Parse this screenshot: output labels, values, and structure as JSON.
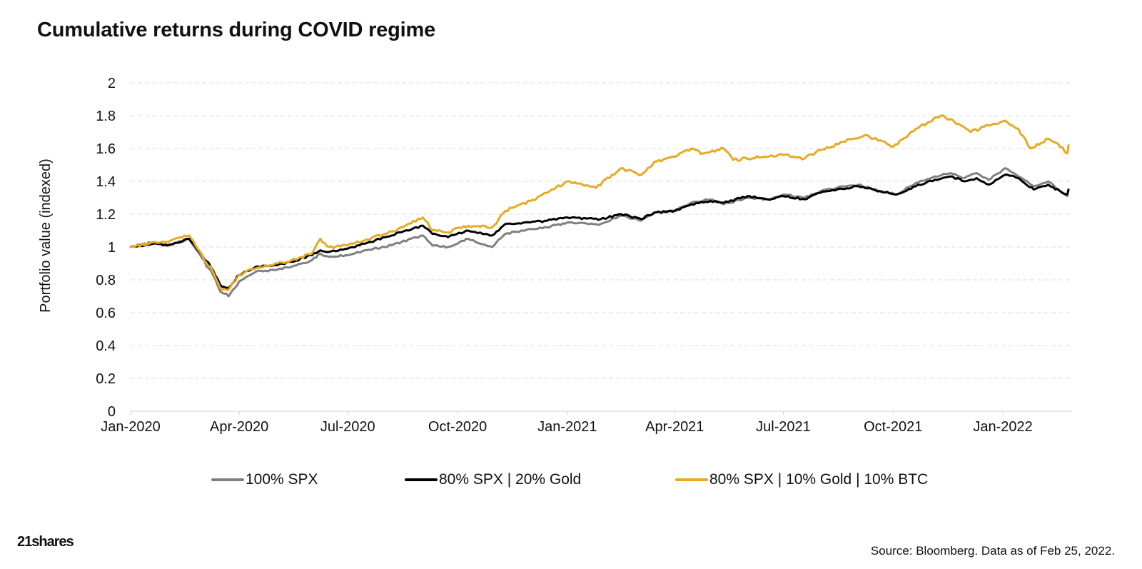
{
  "logo_text": "21shares",
  "source_note": "Source: Bloomberg. Data as of Feb 25, 2022.",
  "chart_data": {
    "type": "line",
    "title": "Cumulative returns during COVID regime",
    "xlabel": "",
    "ylabel": "Portfolio value (indexed)",
    "ylim": [
      0,
      2
    ],
    "yticks": [
      "0",
      "0.2",
      "0.4",
      "0.6",
      "0.8",
      "1",
      "1.2",
      "1.4",
      "1.6",
      "1.8",
      "2"
    ],
    "xlim": [
      "2020-01-01",
      "2022-02-28"
    ],
    "xticks": [
      {
        "date": "2020-01-01",
        "label": "Jan-2020"
      },
      {
        "date": "2020-04-01",
        "label": "Apr-2020"
      },
      {
        "date": "2020-07-01",
        "label": "Jul-2020"
      },
      {
        "date": "2020-10-01",
        "label": "Oct-2020"
      },
      {
        "date": "2021-01-01",
        "label": "Jan-2021"
      },
      {
        "date": "2021-04-01",
        "label": "Apr-2021"
      },
      {
        "date": "2021-07-01",
        "label": "Jul-2021"
      },
      {
        "date": "2021-10-01",
        "label": "Oct-2021"
      },
      {
        "date": "2022-01-01",
        "label": "Jan-2022"
      }
    ],
    "grid": "horizontal dashed",
    "legend_position": "bottom",
    "series": [
      {
        "name": "100% SPX",
        "color": "#808080",
        "points": [
          [
            "2020-01-01",
            1.0
          ],
          [
            "2020-01-20",
            1.03
          ],
          [
            "2020-02-01",
            1.01
          ],
          [
            "2020-02-19",
            1.05
          ],
          [
            "2020-03-01",
            0.93
          ],
          [
            "2020-03-10",
            0.83
          ],
          [
            "2020-03-16",
            0.73
          ],
          [
            "2020-03-23",
            0.7
          ],
          [
            "2020-04-01",
            0.79
          ],
          [
            "2020-04-15",
            0.85
          ],
          [
            "2020-05-01",
            0.86
          ],
          [
            "2020-05-15",
            0.88
          ],
          [
            "2020-06-01",
            0.92
          ],
          [
            "2020-06-08",
            0.96
          ],
          [
            "2020-06-15",
            0.94
          ],
          [
            "2020-07-01",
            0.95
          ],
          [
            "2020-07-15",
            0.98
          ],
          [
            "2020-08-01",
            1.0
          ],
          [
            "2020-08-15",
            1.03
          ],
          [
            "2020-09-02",
            1.07
          ],
          [
            "2020-09-10",
            1.01
          ],
          [
            "2020-09-23",
            1.0
          ],
          [
            "2020-10-10",
            1.05
          ],
          [
            "2020-10-30",
            1.0
          ],
          [
            "2020-11-10",
            1.08
          ],
          [
            "2020-12-01",
            1.11
          ],
          [
            "2020-12-15",
            1.12
          ],
          [
            "2021-01-01",
            1.15
          ],
          [
            "2021-01-29",
            1.14
          ],
          [
            "2021-02-15",
            1.19
          ],
          [
            "2021-03-04",
            1.16
          ],
          [
            "2021-03-15",
            1.21
          ],
          [
            "2021-04-01",
            1.22
          ],
          [
            "2021-04-15",
            1.27
          ],
          [
            "2021-05-01",
            1.29
          ],
          [
            "2021-05-12",
            1.26
          ],
          [
            "2021-06-01",
            1.3
          ],
          [
            "2021-06-18",
            1.29
          ],
          [
            "2021-07-01",
            1.32
          ],
          [
            "2021-07-19",
            1.3
          ],
          [
            "2021-08-01",
            1.34
          ],
          [
            "2021-08-15",
            1.36
          ],
          [
            "2021-09-02",
            1.38
          ],
          [
            "2021-09-20",
            1.34
          ],
          [
            "2021-10-04",
            1.32
          ],
          [
            "2021-10-20",
            1.39
          ],
          [
            "2021-11-05",
            1.43
          ],
          [
            "2021-11-18",
            1.45
          ],
          [
            "2021-11-30",
            1.42
          ],
          [
            "2021-12-10",
            1.45
          ],
          [
            "2021-12-20",
            1.41
          ],
          [
            "2022-01-03",
            1.48
          ],
          [
            "2022-01-14",
            1.43
          ],
          [
            "2022-01-27",
            1.37
          ],
          [
            "2022-02-08",
            1.4
          ],
          [
            "2022-02-18",
            1.34
          ],
          [
            "2022-02-24",
            1.31
          ],
          [
            "2022-02-25",
            1.35
          ]
        ]
      },
      {
        "name": "80% SPX | 20% Gold",
        "color": "#000000",
        "points": [
          [
            "2020-01-01",
            1.0
          ],
          [
            "2020-01-20",
            1.02
          ],
          [
            "2020-02-01",
            1.01
          ],
          [
            "2020-02-19",
            1.05
          ],
          [
            "2020-03-01",
            0.95
          ],
          [
            "2020-03-10",
            0.86
          ],
          [
            "2020-03-16",
            0.77
          ],
          [
            "2020-03-23",
            0.75
          ],
          [
            "2020-04-01",
            0.83
          ],
          [
            "2020-04-15",
            0.88
          ],
          [
            "2020-05-01",
            0.89
          ],
          [
            "2020-05-15",
            0.91
          ],
          [
            "2020-06-01",
            0.95
          ],
          [
            "2020-06-08",
            0.98
          ],
          [
            "2020-06-15",
            0.97
          ],
          [
            "2020-07-01",
            0.99
          ],
          [
            "2020-07-15",
            1.02
          ],
          [
            "2020-08-01",
            1.06
          ],
          [
            "2020-08-15",
            1.09
          ],
          [
            "2020-09-02",
            1.13
          ],
          [
            "2020-09-10",
            1.08
          ],
          [
            "2020-09-23",
            1.06
          ],
          [
            "2020-10-10",
            1.1
          ],
          [
            "2020-10-30",
            1.07
          ],
          [
            "2020-11-10",
            1.14
          ],
          [
            "2020-12-01",
            1.15
          ],
          [
            "2020-12-15",
            1.16
          ],
          [
            "2021-01-01",
            1.18
          ],
          [
            "2021-01-29",
            1.17
          ],
          [
            "2021-02-15",
            1.2
          ],
          [
            "2021-03-04",
            1.17
          ],
          [
            "2021-03-15",
            1.21
          ],
          [
            "2021-04-01",
            1.22
          ],
          [
            "2021-04-15",
            1.26
          ],
          [
            "2021-05-01",
            1.28
          ],
          [
            "2021-05-12",
            1.27
          ],
          [
            "2021-06-01",
            1.31
          ],
          [
            "2021-06-18",
            1.29
          ],
          [
            "2021-07-01",
            1.31
          ],
          [
            "2021-07-19",
            1.29
          ],
          [
            "2021-08-01",
            1.33
          ],
          [
            "2021-08-15",
            1.35
          ],
          [
            "2021-09-02",
            1.37
          ],
          [
            "2021-09-20",
            1.34
          ],
          [
            "2021-10-04",
            1.32
          ],
          [
            "2021-10-20",
            1.37
          ],
          [
            "2021-11-05",
            1.41
          ],
          [
            "2021-11-18",
            1.43
          ],
          [
            "2021-11-30",
            1.4
          ],
          [
            "2021-12-10",
            1.42
          ],
          [
            "2021-12-20",
            1.38
          ],
          [
            "2022-01-03",
            1.44
          ],
          [
            "2022-01-14",
            1.42
          ],
          [
            "2022-01-27",
            1.35
          ],
          [
            "2022-02-08",
            1.38
          ],
          [
            "2022-02-18",
            1.34
          ],
          [
            "2022-02-24",
            1.32
          ],
          [
            "2022-02-25",
            1.35
          ]
        ]
      },
      {
        "name": "80% SPX | 10% Gold | 10% BTC",
        "color": "#E8A923",
        "points": [
          [
            "2020-01-01",
            1.0
          ],
          [
            "2020-01-20",
            1.03
          ],
          [
            "2020-02-01",
            1.03
          ],
          [
            "2020-02-19",
            1.07
          ],
          [
            "2020-03-01",
            0.95
          ],
          [
            "2020-03-10",
            0.85
          ],
          [
            "2020-03-16",
            0.75
          ],
          [
            "2020-03-23",
            0.74
          ],
          [
            "2020-04-01",
            0.83
          ],
          [
            "2020-04-15",
            0.87
          ],
          [
            "2020-05-01",
            0.9
          ],
          [
            "2020-05-15",
            0.92
          ],
          [
            "2020-06-01",
            0.96
          ],
          [
            "2020-06-08",
            1.05
          ],
          [
            "2020-06-15",
            1.0
          ],
          [
            "2020-07-01",
            1.01
          ],
          [
            "2020-07-15",
            1.04
          ],
          [
            "2020-08-01",
            1.08
          ],
          [
            "2020-08-15",
            1.12
          ],
          [
            "2020-09-02",
            1.18
          ],
          [
            "2020-09-10",
            1.1
          ],
          [
            "2020-09-23",
            1.09
          ],
          [
            "2020-10-10",
            1.13
          ],
          [
            "2020-10-30",
            1.12
          ],
          [
            "2020-11-10",
            1.22
          ],
          [
            "2020-12-01",
            1.28
          ],
          [
            "2020-12-15",
            1.33
          ],
          [
            "2021-01-01",
            1.4
          ],
          [
            "2021-01-25",
            1.36
          ],
          [
            "2021-02-15",
            1.48
          ],
          [
            "2021-03-04",
            1.44
          ],
          [
            "2021-03-15",
            1.52
          ],
          [
            "2021-04-01",
            1.55
          ],
          [
            "2021-04-15",
            1.6
          ],
          [
            "2021-04-25",
            1.57
          ],
          [
            "2021-05-12",
            1.6
          ],
          [
            "2021-05-20",
            1.53
          ],
          [
            "2021-06-15",
            1.55
          ],
          [
            "2021-07-01",
            1.56
          ],
          [
            "2021-07-19",
            1.54
          ],
          [
            "2021-08-01",
            1.59
          ],
          [
            "2021-08-20",
            1.64
          ],
          [
            "2021-09-07",
            1.68
          ],
          [
            "2021-09-20",
            1.65
          ],
          [
            "2021-10-01",
            1.61
          ],
          [
            "2021-10-20",
            1.72
          ],
          [
            "2021-11-10",
            1.8
          ],
          [
            "2021-11-25",
            1.75
          ],
          [
            "2021-12-05",
            1.7
          ],
          [
            "2021-12-20",
            1.74
          ],
          [
            "2022-01-03",
            1.77
          ],
          [
            "2022-01-14",
            1.72
          ],
          [
            "2022-01-24",
            1.6
          ],
          [
            "2022-02-08",
            1.66
          ],
          [
            "2022-02-16",
            1.63
          ],
          [
            "2022-02-24",
            1.57
          ],
          [
            "2022-02-25",
            1.62
          ]
        ]
      }
    ]
  }
}
